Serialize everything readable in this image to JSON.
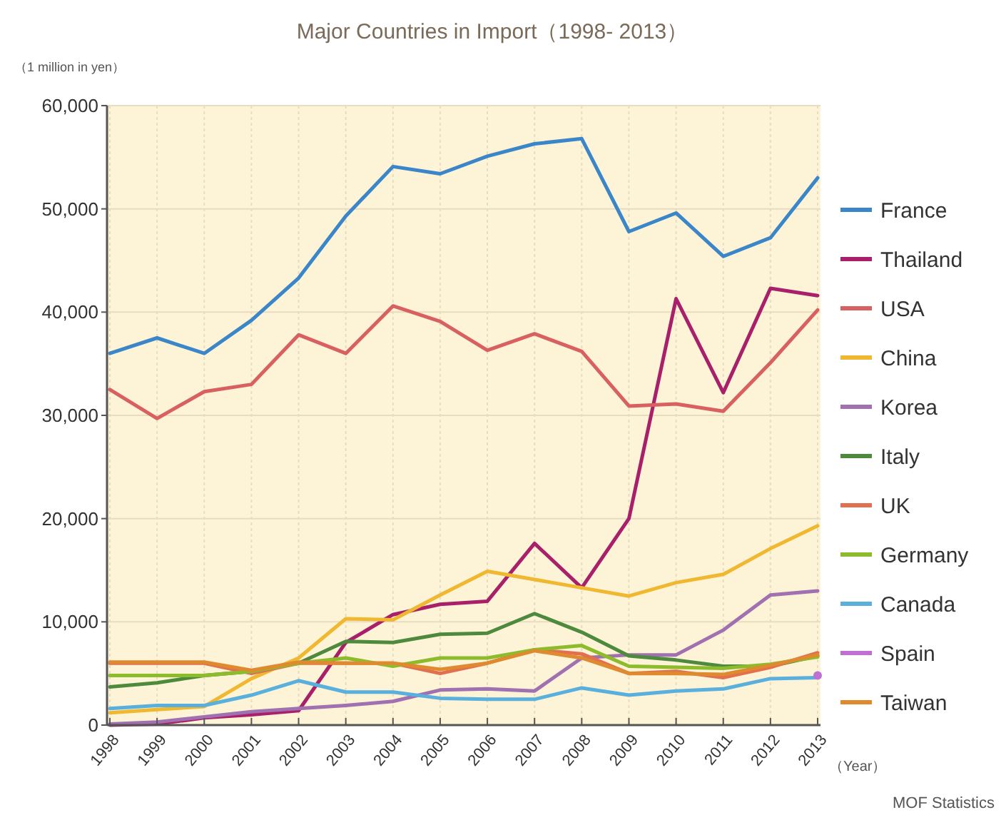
{
  "chart_data": {
    "type": "line",
    "title": "Major Countries in Import（1998- 2013）",
    "ylabel": "（1 million in yen）",
    "xlabel": "（Year）",
    "annotations": [
      "MOF Statistics"
    ],
    "categories": [
      "1998",
      "1999",
      "2000",
      "2001",
      "2002",
      "2003",
      "2004",
      "2005",
      "2006",
      "2007",
      "2008",
      "2009",
      "2010",
      "2011",
      "2012",
      "2013"
    ],
    "ylim": [
      0,
      60000
    ],
    "yticks": [
      {
        "value": 0,
        "label": "0"
      },
      {
        "value": 10000,
        "label": "10,000"
      },
      {
        "value": 20000,
        "label": "20,000"
      },
      {
        "value": 30000,
        "label": "30,000"
      },
      {
        "value": 40000,
        "label": "40,000"
      },
      {
        "value": 50000,
        "label": "50,000"
      },
      {
        "value": 60000,
        "label": "60,000"
      }
    ],
    "grid": true,
    "legend": "right",
    "marker": "none",
    "series": [
      {
        "name": "France",
        "color": "#3a86c8",
        "values": [
          36000,
          37500,
          36000,
          39200,
          43300,
          49300,
          54100,
          53400,
          55100,
          56300,
          56800,
          47800,
          49600,
          45400,
          47200,
          53000
        ]
      },
      {
        "name": "Thailand",
        "color": "#a8206a",
        "values": [
          0,
          100,
          700,
          1000,
          1400,
          8000,
          10700,
          11700,
          12000,
          17600,
          13300,
          20000,
          41300,
          32200,
          42300,
          41600
        ]
      },
      {
        "name": "USA",
        "color": "#d96060",
        "values": [
          32500,
          29700,
          32300,
          33000,
          37800,
          36000,
          40600,
          39100,
          36300,
          37900,
          36200,
          30900,
          31100,
          30400,
          35100,
          40200
        ]
      },
      {
        "name": "China",
        "color": "#f0b830",
        "values": [
          1200,
          1500,
          1800,
          4500,
          6500,
          10300,
          10200,
          12600,
          14900,
          14100,
          13300,
          12500,
          13800,
          14600,
          17100,
          19300
        ]
      },
      {
        "name": "Korea",
        "color": "#a070b0",
        "values": [
          100,
          300,
          800,
          1300,
          1600,
          1900,
          2300,
          3400,
          3500,
          3300,
          6500,
          6800,
          6800,
          9200,
          12600,
          13000
        ]
      },
      {
        "name": "Italy",
        "color": "#4e8a3e",
        "values": [
          3700,
          4100,
          4800,
          5200,
          6000,
          8100,
          8000,
          8800,
          8900,
          10800,
          9000,
          6700,
          6300,
          5700,
          5700,
          6700
        ]
      },
      {
        "name": "UK",
        "color": "#e07050",
        "values": [
          6000,
          6000,
          6000,
          5000,
          6000,
          6000,
          6000,
          5000,
          6000,
          7300,
          6900,
          5000,
          5200,
          4600,
          5600,
          7000
        ]
      },
      {
        "name": "Germany",
        "color": "#8cbc2c",
        "values": [
          4800,
          4800,
          4800,
          5200,
          6000,
          6500,
          5700,
          6500,
          6500,
          7300,
          7700,
          5700,
          5600,
          5500,
          5900,
          6600
        ]
      },
      {
        "name": "Canada",
        "color": "#5ab0dc",
        "values": [
          1600,
          1900,
          1900,
          2900,
          4300,
          3200,
          3200,
          2600,
          2500,
          2500,
          3600,
          2900,
          3300,
          3500,
          4500,
          4600
        ]
      },
      {
        "name": "Spain",
        "color": "#c070d0",
        "marker": "circle",
        "values": [
          null,
          null,
          null,
          null,
          null,
          null,
          null,
          null,
          null,
          null,
          null,
          null,
          null,
          null,
          null,
          4800
        ]
      },
      {
        "name": "Taiwan",
        "color": "#e08a30",
        "values": [
          6100,
          6100,
          6100,
          5300,
          6100,
          6000,
          6000,
          5400,
          6000,
          7200,
          6500,
          5000,
          5000,
          4900,
          5800,
          6800
        ]
      }
    ]
  }
}
